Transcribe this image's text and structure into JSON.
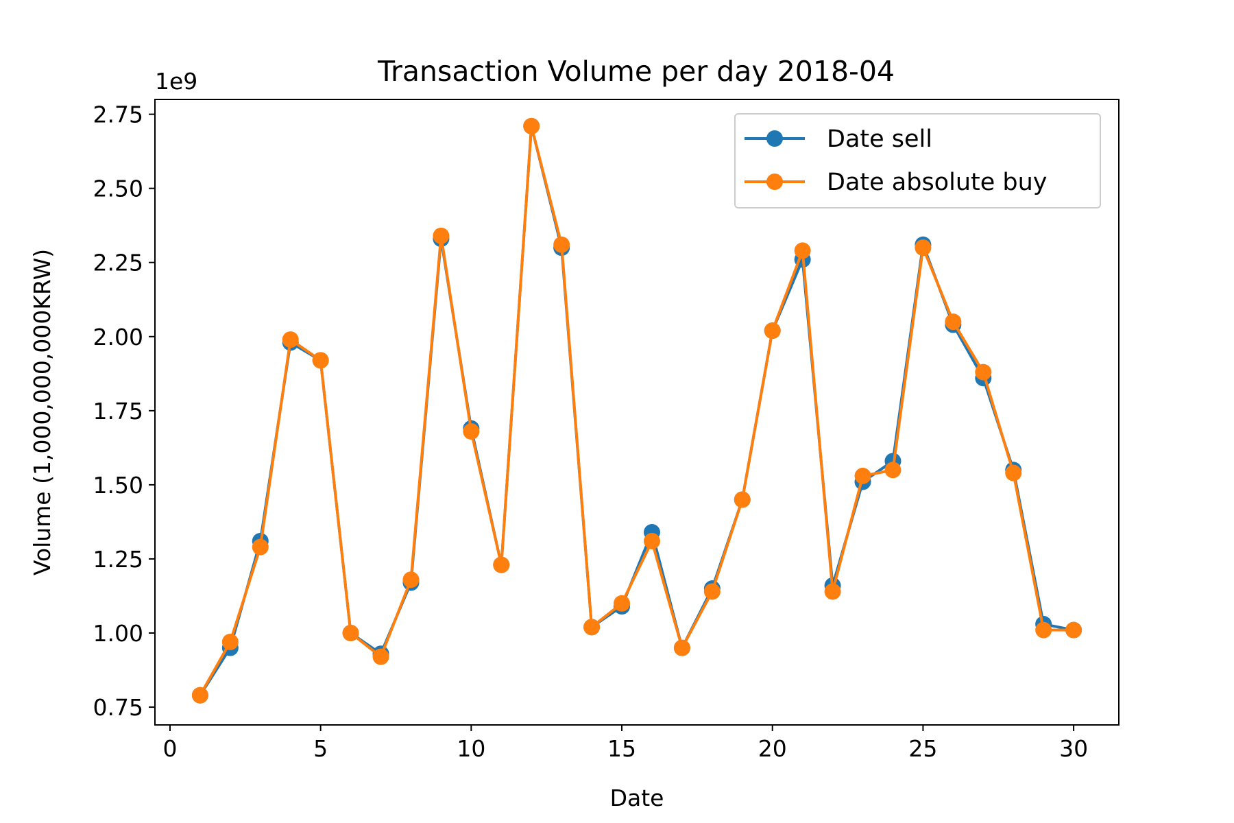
{
  "chart_data": {
    "type": "line",
    "title": "Transaction Volume per day 2018-04",
    "xlabel": "Date",
    "ylabel": "Volume (1,000,000,000KRW)",
    "offset_text": "1e9",
    "xlim": [
      -0.5,
      31.5
    ],
    "ylim": [
      0.69,
      2.8
    ],
    "xticks": [
      0,
      5,
      10,
      15,
      20,
      25,
      30
    ],
    "yticks": [
      0.75,
      1.0,
      1.25,
      1.5,
      1.75,
      2.0,
      2.25,
      2.5,
      2.75
    ],
    "ytick_labels": [
      "0.75",
      "1.00",
      "1.25",
      "1.50",
      "1.75",
      "2.00",
      "2.25",
      "2.50",
      "2.75"
    ],
    "grid": false,
    "legend_position": "top-right",
    "x": [
      1,
      2,
      3,
      4,
      5,
      6,
      7,
      8,
      9,
      10,
      11,
      12,
      13,
      14,
      15,
      16,
      17,
      18,
      19,
      20,
      21,
      22,
      23,
      24,
      25,
      26,
      27,
      28,
      29,
      30
    ],
    "series": [
      {
        "name": "Date sell",
        "color": "#1f77b4",
        "values": [
          0.79,
          0.95,
          1.31,
          1.98,
          1.92,
          1.0,
          0.93,
          1.17,
          2.33,
          1.69,
          1.23,
          2.71,
          2.3,
          1.02,
          1.09,
          1.34,
          0.95,
          1.15,
          1.45,
          2.02,
          2.26,
          1.16,
          1.51,
          1.58,
          2.31,
          2.04,
          1.86,
          1.55,
          1.03,
          1.01
        ]
      },
      {
        "name": "Date absolute buy",
        "color": "#ff7f0e",
        "values": [
          0.79,
          0.97,
          1.29,
          1.99,
          1.92,
          1.0,
          0.92,
          1.18,
          2.34,
          1.68,
          1.23,
          2.71,
          2.31,
          1.02,
          1.1,
          1.31,
          0.95,
          1.14,
          1.45,
          2.02,
          2.29,
          1.14,
          1.53,
          1.55,
          2.3,
          2.05,
          1.88,
          1.54,
          1.01,
          1.01
        ]
      }
    ]
  }
}
